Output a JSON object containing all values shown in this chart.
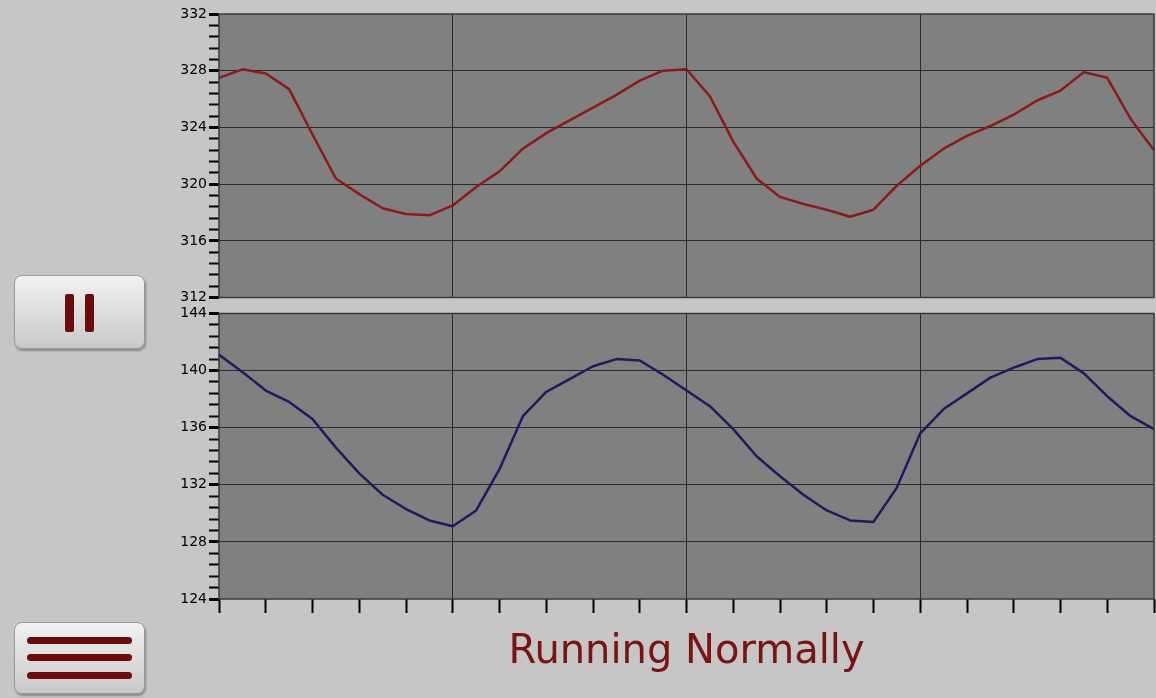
{
  "chart_data": [
    {
      "type": "line",
      "categories": [
        null,
        null,
        null,
        null,
        null,
        null,
        null,
        null,
        null,
        null,
        null,
        null,
        null,
        null,
        null,
        null,
        null,
        null,
        null,
        null,
        null,
        null,
        null,
        null,
        null,
        null,
        null,
        null,
        null,
        null,
        null,
        null,
        null,
        null,
        null,
        null,
        null,
        null,
        null,
        null,
        null
      ],
      "series": [
        {
          "color": "#8b1a1a",
          "values": [
            327.5,
            328.1,
            327.8,
            326.7,
            323.5,
            320.4,
            319.3,
            318.3,
            317.9,
            317.8,
            318.5,
            319.8,
            320.9,
            322.5,
            323.6,
            324.5,
            325.4,
            326.3,
            327.3,
            328.0,
            328.1,
            326.2,
            323.0,
            320.4,
            319.1,
            318.6,
            318.2,
            317.7,
            318.2,
            319.9,
            321.3,
            322.5,
            323.4,
            324.1,
            324.9,
            325.9,
            326.6,
            327.9,
            327.5,
            324.6,
            322.4
          ]
        }
      ],
      "ylim": [
        312,
        332
      ],
      "yticks": [
        312,
        {
          "value": 312.8,
          "label": null
        },
        {
          "value": 313.6,
          "label": null
        },
        {
          "value": 314.4,
          "label": null
        },
        {
          "value": 315.2,
          "label": null
        },
        316,
        {
          "value": 316.8,
          "label": null
        },
        {
          "value": 317.6,
          "label": null
        },
        {
          "value": 318.4,
          "label": null
        },
        {
          "value": 319.2,
          "label": null
        },
        320,
        {
          "value": 320.8,
          "label": null
        },
        {
          "value": 321.6,
          "label": null
        },
        {
          "value": 322.4,
          "label": null
        },
        {
          "value": 323.2,
          "label": null
        },
        324,
        {
          "value": 324.8,
          "label": null
        },
        {
          "value": 325.6,
          "label": null
        },
        {
          "value": 326.4,
          "label": null
        },
        {
          "value": 327.2,
          "label": null
        },
        328,
        {
          "value": 328.8,
          "label": null
        },
        {
          "value": 329.6,
          "label": null
        },
        {
          "value": 330.4,
          "label": null
        },
        {
          "value": 331.2,
          "label": null
        },
        332
      ],
      "grid": true,
      "legend": false,
      "marker": "none",
      "line_style": "solid",
      "tick_labels": "y"
    },
    {
      "type": "line",
      "categories": [
        null,
        null,
        null,
        null,
        null,
        null,
        null,
        null,
        null,
        null,
        null,
        null,
        null,
        null,
        null,
        null,
        null,
        null,
        null,
        null,
        null,
        null,
        null,
        null,
        null,
        null,
        null,
        null,
        null,
        null,
        null,
        null,
        null,
        null,
        null,
        null,
        null,
        null,
        null,
        null,
        null
      ],
      "series": [
        {
          "color": "#1c1c5e",
          "values": [
            141.1,
            139.9,
            138.6,
            137.8,
            136.6,
            134.6,
            132.8,
            131.3,
            130.3,
            129.5,
            129.1,
            130.2,
            133.1,
            136.8,
            138.5,
            139.4,
            140.3,
            140.8,
            140.7,
            139.7,
            138.6,
            137.5,
            135.9,
            134.0,
            132.6,
            131.3,
            130.2,
            129.5,
            129.4,
            131.8,
            135.6,
            137.3,
            138.4,
            139.5,
            140.2,
            140.8,
            140.9,
            139.8,
            138.2,
            136.8,
            135.9
          ]
        }
      ],
      "ylim": [
        124,
        144
      ],
      "yticks": [
        124,
        {
          "value": 124.8,
          "label": null
        },
        {
          "value": 125.6,
          "label": null
        },
        {
          "value": 126.4,
          "label": null
        },
        {
          "value": 127.2,
          "label": null
        },
        128,
        {
          "value": 128.8,
          "label": null
        },
        {
          "value": 129.6,
          "label": null
        },
        {
          "value": 130.4,
          "label": null
        },
        {
          "value": 131.2,
          "label": null
        },
        132,
        {
          "value": 132.8,
          "label": null
        },
        {
          "value": 133.6,
          "label": null
        },
        {
          "value": 134.4,
          "label": null
        },
        {
          "value": 135.2,
          "label": null
        },
        136,
        {
          "value": 136.8,
          "label": null
        },
        {
          "value": 137.6,
          "label": null
        },
        {
          "value": 138.4,
          "label": null
        },
        {
          "value": 139.2,
          "label": null
        },
        140,
        {
          "value": 140.8,
          "label": null
        },
        {
          "value": 141.6,
          "label": null
        },
        {
          "value": 142.4,
          "label": null
        },
        {
          "value": 143.2,
          "label": null
        },
        144
      ],
      "grid": true,
      "legend": false,
      "marker": "none",
      "line_style": "solid",
      "tick_labels": "y",
      "annotations": [
        "Running Normally"
      ]
    }
  ]
}
